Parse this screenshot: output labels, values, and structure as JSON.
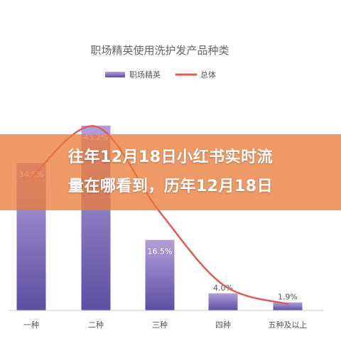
{
  "chart_data": {
    "type": "bar",
    "title": "职场精英使用洗护发产品种类",
    "categories": [
      "一种",
      "二种",
      "三种",
      "四种",
      "五种及以上"
    ],
    "series": [
      {
        "name": "职场精英",
        "type": "bar",
        "values": [
          34.5,
          43.2,
          16.5,
          4.0,
          1.9
        ],
        "labels": [
          "34.5%",
          "43.2%",
          "16.5%",
          "4.0%",
          "1.9%"
        ]
      },
      {
        "name": "总体",
        "type": "line",
        "values": [
          31.0,
          43.0,
          23.0,
          6.0,
          1.5
        ]
      }
    ],
    "ylim": [
      0,
      45
    ],
    "legend_position": "top-center",
    "grid": false,
    "colors": {
      "bar_top": "#b39fd8",
      "bar_bottom": "#5d4fa3",
      "line": "#e05b5b",
      "title": "#666666",
      "axis": "#cccccc"
    }
  },
  "overlay": {
    "line1": "往年12月18日小红书实时流",
    "line2": "量在哪看到，历年12月18日",
    "color": "#e87e3c"
  }
}
